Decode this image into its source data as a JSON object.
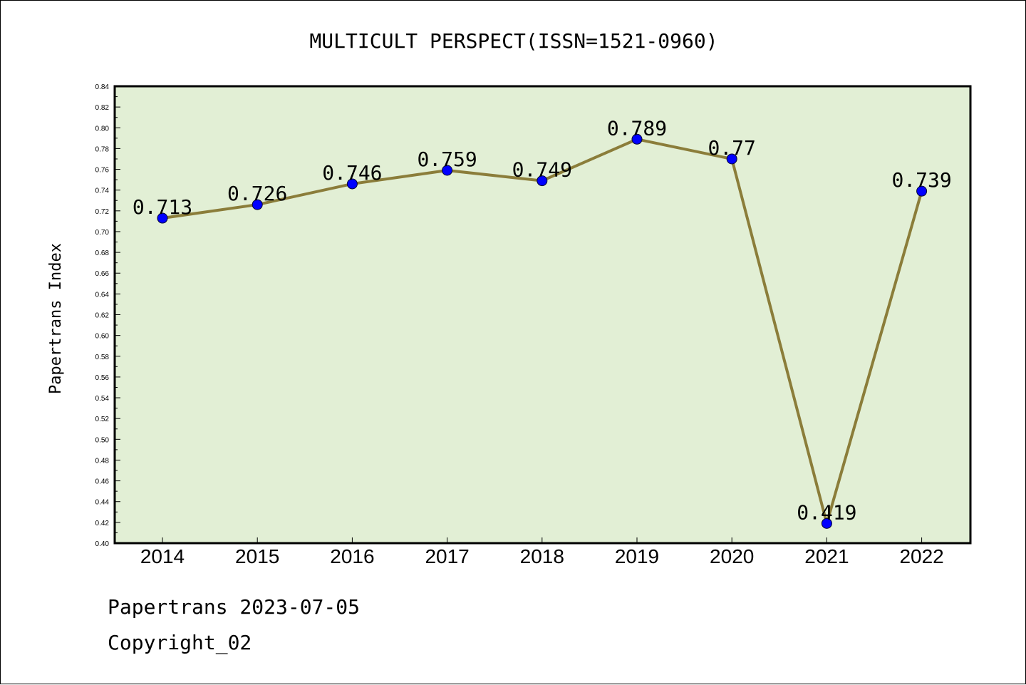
{
  "chart_data": {
    "type": "line",
    "title": "MULTICULT PERSPECT(ISSN=1521-0960)",
    "xlabel": "",
    "ylabel": "Papertrans Index",
    "categories": [
      "2014",
      "2015",
      "2016",
      "2017",
      "2018",
      "2019",
      "2020",
      "2021",
      "2022"
    ],
    "series": [
      {
        "values": [
          0.713,
          0.726,
          0.746,
          0.759,
          0.749,
          0.789,
          0.77,
          0.419,
          0.739
        ],
        "labels": [
          "0.713",
          "0.726",
          "0.746",
          "0.759",
          "0.749",
          "0.789",
          "0.77",
          "0.419",
          "0.739"
        ]
      }
    ],
    "ylim": [
      0.4,
      0.84
    ],
    "yticks": [
      "0.40",
      "0.42",
      "0.44",
      "0.46",
      "0.48",
      "0.50",
      "0.52",
      "0.54",
      "0.56",
      "0.58",
      "0.60",
      "0.62",
      "0.64",
      "0.66",
      "0.68",
      "0.70",
      "0.72",
      "0.74",
      "0.76",
      "0.78",
      "0.80",
      "0.82",
      "0.84"
    ],
    "grid": false,
    "colors": {
      "plot_background": "#e2efd5",
      "line": "#8b7d3a",
      "marker": "#0000ff"
    }
  },
  "footer": {
    "line1": "Papertrans 2023-07-05",
    "line2": "Copyright_02"
  }
}
